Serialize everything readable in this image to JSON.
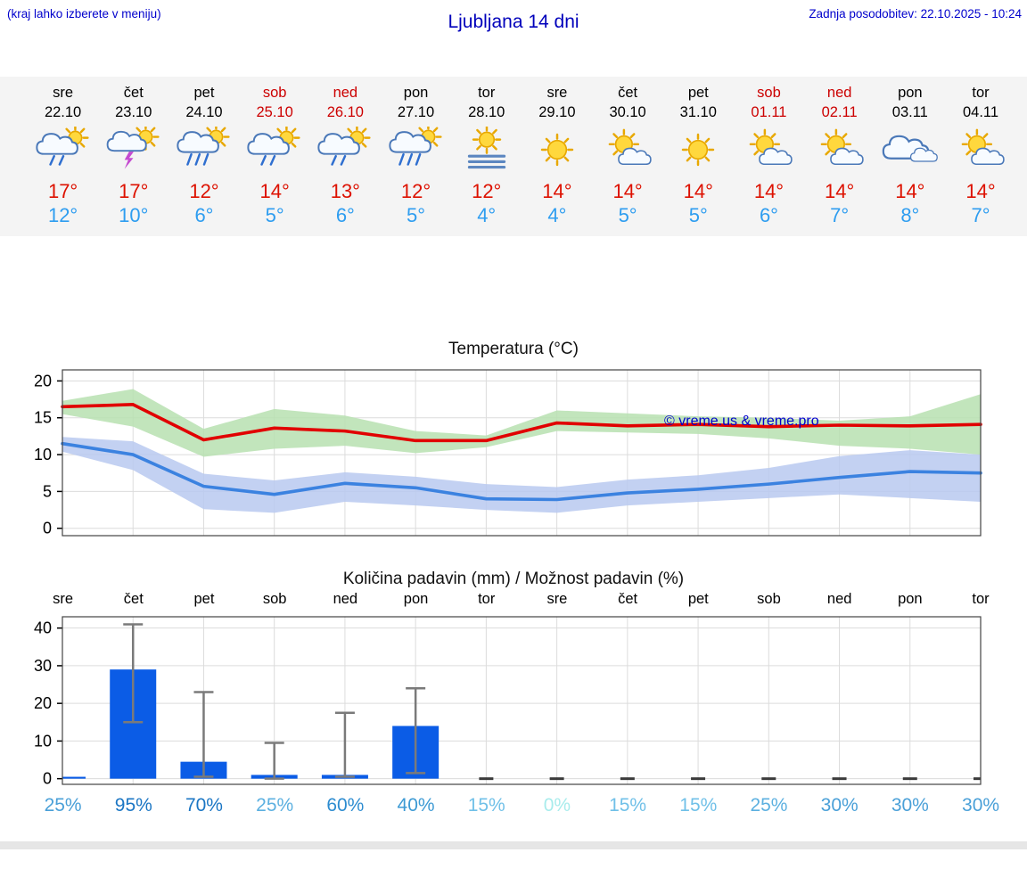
{
  "header": {
    "left_note": "(kraj lahko izberete v meniju)",
    "title": "Ljubljana 14 dni",
    "updated": "Zadnja posodobitev: 22.10.2025 - 10:24"
  },
  "colors": {
    "link_blue": "#0000cc",
    "tmax_red": "#dd1100",
    "tmin_blue": "#2e9df0",
    "holiday_red": "#cc0000",
    "strip_bg": "#f4f4f4"
  },
  "forecast": {
    "days": [
      {
        "day": "sre",
        "date": "22.10",
        "holiday": false,
        "icon": "sun-shower",
        "tmax": "17°",
        "tmin": "12°"
      },
      {
        "day": "čet",
        "date": "23.10",
        "holiday": false,
        "icon": "sun-thunderstorm",
        "tmax": "17°",
        "tmin": "10°"
      },
      {
        "day": "pet",
        "date": "24.10",
        "holiday": false,
        "icon": "sun-heavy-rain",
        "tmax": "12°",
        "tmin": "6°"
      },
      {
        "day": "sob",
        "date": "25.10",
        "holiday": true,
        "icon": "sun-shower",
        "tmax": "14°",
        "tmin": "5°"
      },
      {
        "day": "ned",
        "date": "26.10",
        "holiday": true,
        "icon": "sun-shower",
        "tmax": "13°",
        "tmin": "6°"
      },
      {
        "day": "pon",
        "date": "27.10",
        "holiday": false,
        "icon": "sun-heavy-rain",
        "tmax": "12°",
        "tmin": "5°"
      },
      {
        "day": "tor",
        "date": "28.10",
        "holiday": false,
        "icon": "sun-fog",
        "tmax": "12°",
        "tmin": "4°"
      },
      {
        "day": "sre",
        "date": "29.10",
        "holiday": false,
        "icon": "sunny",
        "tmax": "14°",
        "tmin": "4°"
      },
      {
        "day": "čet",
        "date": "30.10",
        "holiday": false,
        "icon": "partly-sunny",
        "tmax": "14°",
        "tmin": "5°"
      },
      {
        "day": "pet",
        "date": "31.10",
        "holiday": false,
        "icon": "sunny",
        "tmax": "14°",
        "tmin": "5°"
      },
      {
        "day": "sob",
        "date": "01.11",
        "holiday": true,
        "icon": "partly-sunny",
        "tmax": "14°",
        "tmin": "6°"
      },
      {
        "day": "ned",
        "date": "02.11",
        "holiday": true,
        "icon": "partly-sunny",
        "tmax": "14°",
        "tmin": "7°"
      },
      {
        "day": "pon",
        "date": "03.11",
        "holiday": false,
        "icon": "cloudy",
        "tmax": "14°",
        "tmin": "8°"
      },
      {
        "day": "tor",
        "date": "04.11",
        "holiday": false,
        "icon": "partly-sunny",
        "tmax": "14°",
        "tmin": "7°"
      }
    ]
  },
  "chart_data": [
    {
      "type": "line",
      "title": "Temperatura (°C)",
      "x_categories": [
        "sre",
        "čet",
        "pet",
        "sob",
        "ned",
        "pon",
        "tor",
        "sre",
        "čet",
        "pet",
        "sob",
        "ned",
        "pon",
        "tor"
      ],
      "ylim": [
        -1,
        21.5
      ],
      "yticks": [
        0,
        5,
        10,
        15,
        20
      ],
      "grid": true,
      "legend": "none",
      "watermark": "© vreme.us & vreme.pro",
      "watermark_color": "#0000cc",
      "series": [
        {
          "name": "t_max",
          "color": "#e10000",
          "values": [
            16.5,
            16.8,
            12.0,
            13.6,
            13.2,
            11.9,
            11.9,
            14.3,
            13.9,
            14.1,
            13.8,
            14.0,
            13.9,
            14.1
          ]
        },
        {
          "name": "t_min",
          "color": "#3b82e0",
          "values": [
            11.5,
            10.0,
            5.7,
            4.6,
            6.1,
            5.5,
            4.0,
            3.9,
            4.8,
            5.3,
            6.0,
            6.9,
            7.7,
            7.5
          ]
        },
        {
          "name": "t_max_band_high",
          "color": "#b7e0b0",
          "values": [
            17.3,
            18.9,
            13.5,
            16.2,
            15.3,
            13.2,
            12.6,
            16.0,
            15.6,
            15.2,
            15.0,
            14.6,
            15.2,
            18.2
          ]
        },
        {
          "name": "t_max_band_low",
          "color": "#b7e0b0",
          "values": [
            15.5,
            13.8,
            9.7,
            10.8,
            11.2,
            10.2,
            11.0,
            13.2,
            13.0,
            12.8,
            12.2,
            11.2,
            10.8,
            10.0
          ]
        },
        {
          "name": "t_min_band_high",
          "color": "#b9c9f0",
          "values": [
            12.4,
            11.8,
            7.4,
            6.5,
            7.6,
            7.0,
            6.0,
            5.6,
            6.6,
            7.2,
            8.2,
            9.8,
            10.6,
            10.0
          ]
        },
        {
          "name": "t_min_band_low",
          "color": "#b9c9f0",
          "values": [
            10.4,
            7.9,
            2.6,
            2.1,
            3.6,
            3.1,
            2.5,
            2.1,
            3.1,
            3.6,
            4.1,
            4.6,
            4.1,
            3.6
          ]
        }
      ]
    },
    {
      "type": "bar",
      "title": "Količina padavin (mm) / Možnost padavin (%)",
      "categories": [
        "sre",
        "čet",
        "pet",
        "sob",
        "ned",
        "pon",
        "tor",
        "sre",
        "čet",
        "pet",
        "sob",
        "ned",
        "pon",
        "tor"
      ],
      "values": [
        0.5,
        29,
        4.5,
        1,
        1,
        14,
        0,
        0,
        0,
        0,
        0,
        0,
        0,
        0
      ],
      "whisker_low": [
        0,
        15,
        0.5,
        0,
        0.5,
        1.5,
        0,
        0,
        0,
        0,
        0,
        0,
        0,
        0
      ],
      "whisker_high": [
        0,
        41,
        23,
        9.5,
        17.5,
        24,
        0,
        0,
        0,
        0,
        0,
        0,
        0,
        0
      ],
      "ylim": [
        -1.5,
        43
      ],
      "yticks": [
        0,
        10,
        20,
        30,
        40
      ],
      "grid": true,
      "bar_color": "#0b5ce6",
      "whisker_color": "#7a7a7a",
      "probabilities": [
        "25%",
        "95%",
        "70%",
        "25%",
        "60%",
        "40%",
        "15%",
        "0%",
        "15%",
        "15%",
        "25%",
        "30%",
        "30%",
        "30%"
      ],
      "probability_colors": [
        "#4aa0d8",
        "#1b76c4",
        "#1b76c4",
        "#5cb0e0",
        "#2d8cd0",
        "#3d9ad4",
        "#70c0e8",
        "#a8ecec",
        "#70c0e8",
        "#70c0e8",
        "#5cb0e0",
        "#4aa0d8",
        "#4aa0d8",
        "#4aa0d8"
      ]
    }
  ]
}
